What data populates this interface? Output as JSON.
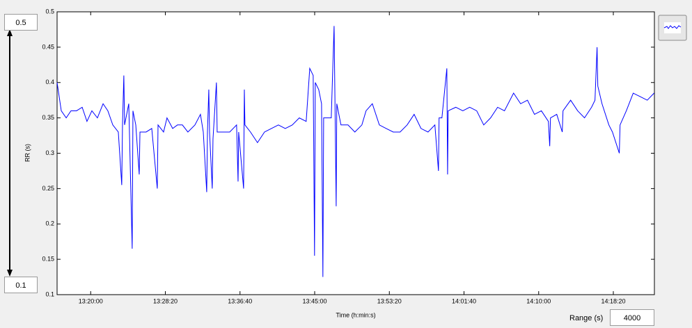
{
  "chart_data": {
    "type": "line",
    "xlabel": "Time (h:min:s)",
    "ylabel": "RR (s)",
    "xlim": [
      47775,
      51775
    ],
    "ylim": [
      0.1,
      0.5
    ],
    "yticks": [
      0.1,
      0.15,
      0.2,
      0.25,
      0.3,
      0.35,
      0.4,
      0.45,
      0.5
    ],
    "xticks": [
      {
        "value": 48000,
        "label": "13:20:00"
      },
      {
        "value": 48500,
        "label": "13:28:20"
      },
      {
        "value": 49000,
        "label": "13:36:40"
      },
      {
        "value": 49500,
        "label": "13:45:00"
      },
      {
        "value": 50000,
        "label": "13:53:20"
      },
      {
        "value": 50500,
        "label": "14:01:40"
      },
      {
        "value": 51000,
        "label": "14:10:00"
      },
      {
        "value": 51500,
        "label": "14:18:20"
      }
    ],
    "grid": false,
    "color": "#0000ff",
    "x": [
      47775,
      47803,
      47836,
      47868,
      47905,
      47943,
      47975,
      48008,
      48045,
      48083,
      48115,
      48148,
      48185,
      48208,
      48213,
      48222,
      48227,
      48255,
      48278,
      48283,
      48302,
      48325,
      48330,
      48371,
      48409,
      48446,
      48451,
      48488,
      48511,
      48549,
      48581,
      48614,
      48651,
      48698,
      48735,
      48754,
      48777,
      48782,
      48791,
      48796,
      48814,
      48819,
      48842,
      48847,
      48884,
      48931,
      48977,
      48987,
      48991,
      49024,
      49029,
      49033,
      49070,
      49117,
      49164,
      49210,
      49257,
      49303,
      49350,
      49397,
      49443,
      49467,
      49490,
      49499,
      49504,
      49527,
      49546,
      49555,
      49560,
      49583,
      49611,
      49630,
      49644,
      49648,
      49676,
      49723,
      49769,
      49816,
      49844,
      49886,
      49933,
      49979,
      50026,
      50072,
      50119,
      50166,
      50212,
      50259,
      50305,
      50329,
      50333,
      50352,
      50385,
      50390,
      50394,
      50445,
      50492,
      50538,
      50585,
      50632,
      50678,
      50725,
      50771,
      50832,
      50879,
      50925,
      50972,
      51018,
      51065,
      51074,
      51079,
      51121,
      51158,
      51163,
      51214,
      51261,
      51307,
      51354,
      51377,
      51391,
      51396,
      51424,
      51470,
      51494,
      51540,
      51545,
      51587,
      51633,
      51680,
      51727,
      51773
    ],
    "values": [
      0.4,
      0.36,
      0.35,
      0.36,
      0.36,
      0.365,
      0.345,
      0.36,
      0.35,
      0.37,
      0.36,
      0.34,
      0.33,
      0.255,
      0.34,
      0.41,
      0.34,
      0.37,
      0.165,
      0.36,
      0.34,
      0.27,
      0.33,
      0.33,
      0.335,
      0.25,
      0.34,
      0.33,
      0.35,
      0.335,
      0.34,
      0.34,
      0.33,
      0.34,
      0.355,
      0.33,
      0.245,
      0.33,
      0.39,
      0.33,
      0.25,
      0.32,
      0.4,
      0.33,
      0.33,
      0.33,
      0.34,
      0.26,
      0.33,
      0.25,
      0.39,
      0.34,
      0.33,
      0.315,
      0.33,
      0.335,
      0.34,
      0.335,
      0.34,
      0.35,
      0.345,
      0.42,
      0.41,
      0.155,
      0.4,
      0.39,
      0.37,
      0.125,
      0.35,
      0.35,
      0.35,
      0.48,
      0.225,
      0.37,
      0.34,
      0.34,
      0.33,
      0.34,
      0.36,
      0.37,
      0.34,
      0.335,
      0.33,
      0.33,
      0.34,
      0.355,
      0.335,
      0.33,
      0.34,
      0.275,
      0.35,
      0.35,
      0.42,
      0.27,
      0.36,
      0.365,
      0.36,
      0.365,
      0.36,
      0.34,
      0.35,
      0.365,
      0.36,
      0.385,
      0.37,
      0.375,
      0.355,
      0.36,
      0.345,
      0.31,
      0.35,
      0.355,
      0.33,
      0.36,
      0.375,
      0.36,
      0.35,
      0.365,
      0.375,
      0.45,
      0.395,
      0.37,
      0.34,
      0.33,
      0.3,
      0.34,
      0.36,
      0.385,
      0.38,
      0.375,
      0.385
    ]
  },
  "controls": {
    "ymax": "0.5",
    "ymin": "0.1",
    "range_label": "Range (s)",
    "range_value": "4000"
  }
}
